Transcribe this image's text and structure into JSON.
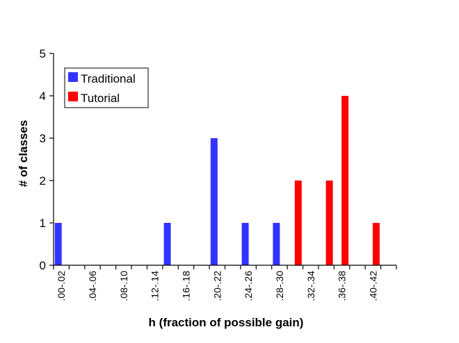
{
  "chart_data": {
    "type": "bar",
    "title": "",
    "xlabel": "h (fraction of possible gain)",
    "ylabel": "# of classes",
    "ylim": [
      0,
      5
    ],
    "yticks": [
      "0",
      "1",
      "2",
      "3",
      "4",
      "5"
    ],
    "grid": false,
    "legend_position": "top-left",
    "categories": [
      ".00-.02",
      ".02-.04",
      ".04-.06",
      ".06-.08",
      ".08-.10",
      ".10-.12",
      ".12-.14",
      ".14-.16",
      ".16-.18",
      ".18-.20",
      ".20-.22",
      ".22-.24",
      ".24-.26",
      ".26-.28",
      ".28-.30",
      ".30-.32",
      ".32-.34",
      ".34-.36",
      ".36-.38",
      ".38-.40",
      ".40-.42",
      ".42-.44"
    ],
    "category_labels": [
      ".00-.02",
      "",
      ".04-.06",
      "",
      ".08-.10",
      "",
      ".12-.14",
      "",
      ".16-.18",
      "",
      ".20-.22",
      "",
      ".24-.26",
      "",
      ".28-.30",
      "",
      ".32-.34",
      "",
      ".36-.38",
      "",
      ".40-.42",
      ""
    ],
    "series": [
      {
        "name": "Traditional",
        "color": "#3333ff",
        "values": [
          1,
          0,
          0,
          0,
          0,
          0,
          0,
          1,
          0,
          0,
          3,
          0,
          1,
          0,
          1,
          0,
          0,
          0,
          0,
          0,
          0,
          0
        ]
      },
      {
        "name": "Tutorial",
        "color": "#ff0000",
        "values": [
          0,
          0,
          0,
          0,
          0,
          0,
          0,
          0,
          0,
          0,
          0,
          0,
          0,
          0,
          0,
          2,
          0,
          2,
          4,
          0,
          1,
          0
        ]
      }
    ]
  }
}
